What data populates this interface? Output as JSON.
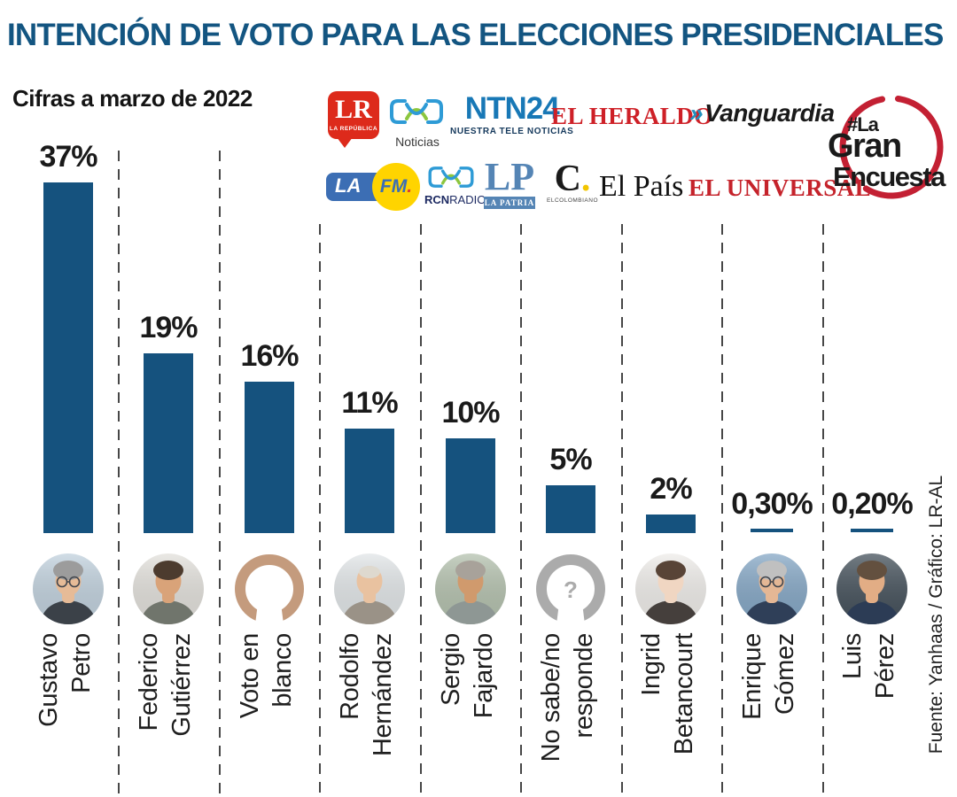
{
  "title": "INTENCIÓN DE VOTO PARA LAS ELECCIONES PRESIDENCIALES",
  "subtitle": "Cifras a marzo de 2022",
  "source": "Fuente: Yanhaas / Gráfico: LR-AL",
  "colors": {
    "title_blue": "#135581",
    "bar_blue": "#15527e",
    "dash_gray": "#474747",
    "badge_red": "#c32033",
    "placeholder_tan": "#c49b7d",
    "placeholder_gray": "#ababab"
  },
  "logos": {
    "lr": {
      "main": "LR",
      "sub": "LA REPÚBLICA"
    },
    "rcn_noticias": {
      "caption": "Noticias"
    },
    "ntn24": {
      "main": "NTN24",
      "sub": "NUESTRA TELE NOTICIAS"
    },
    "el_heraldo": {
      "text": "EL HERALDO"
    },
    "vanguardia": {
      "chevrons": "»",
      "text": "Vanguardia"
    },
    "la_fm": {
      "la": "LA",
      "fm": "FM",
      "dot": "."
    },
    "rcn_radio": {
      "rcn": "RCN",
      "radio": "RADIO"
    },
    "la_patria": {
      "main": "LP",
      "banner": "LA PATRIA"
    },
    "el_colombiano": {
      "main": "C",
      "dot": ".",
      "sub": "ELCOLOMBIANO"
    },
    "el_pais": {
      "text": "El País"
    },
    "el_universal": {
      "text": "EL UNIVERSAL"
    },
    "gran_encuesta": {
      "line1": "#La",
      "line2": "Gran",
      "line3": "Encuesta"
    }
  },
  "chart_data": {
    "type": "bar",
    "title": "Intención de voto para las elecciones presidenciales",
    "unit": "%",
    "ylim": [
      0,
      40
    ],
    "grid": false,
    "legend": "none",
    "categories": [
      "Gustavo Petro",
      "Federico Gutiérrez",
      "Voto en blanco",
      "Rodolfo Hernández",
      "Sergio Fajardo",
      "No sabe/no responde",
      "Ingrid Betancourt",
      "Enrique Gómez",
      "Luis Pérez"
    ],
    "values": [
      37,
      19,
      16,
      11,
      10,
      5,
      2,
      0.3,
      0.2
    ],
    "candidates": [
      {
        "name": [
          "Gustavo",
          "Petro"
        ],
        "value": 37,
        "label": "37%",
        "bar": "normal",
        "avatar": {
          "type": "photo",
          "bg": "#c2d2de",
          "hair": "#9c9c9c",
          "skin": "#e6bb97",
          "suit": "#3b4148",
          "glasses": true,
          "bald": false
        }
      },
      {
        "name": [
          "Federico",
          "Gutiérrez"
        ],
        "value": 19,
        "label": "19%",
        "bar": "normal",
        "avatar": {
          "type": "photo",
          "bg": "#e3e1dc",
          "hair": "#4c3b2e",
          "skin": "#d9a379",
          "suit": "#70756c",
          "glasses": false,
          "bald": false
        }
      },
      {
        "name": [
          "Voto en",
          "blanco"
        ],
        "value": 16,
        "label": "16%",
        "bar": "normal",
        "avatar": {
          "type": "placeholder",
          "color": "#c49b7d",
          "question": false
        }
      },
      {
        "name": [
          "Rodolfo",
          "Hernández"
        ],
        "value": 11,
        "label": "11%",
        "bar": "normal",
        "avatar": {
          "type": "photo",
          "bg": "#e2e6e8",
          "hair": "#ded9cf",
          "skin": "#e9c2a0",
          "suit": "#9a9287",
          "glasses": false,
          "bald": true
        }
      },
      {
        "name": [
          "Sergio",
          "Fajardo"
        ],
        "value": 10,
        "label": "10%",
        "bar": "normal",
        "avatar": {
          "type": "photo",
          "bg": "#b5c2af",
          "hair": "#a8a29a",
          "skin": "#d09a6d",
          "suit": "#8e9794",
          "glasses": false,
          "bald": false
        }
      },
      {
        "name": [
          "No sabe/no",
          "responde"
        ],
        "value": 5,
        "label": "5%",
        "bar": "normal",
        "avatar": {
          "type": "placeholder",
          "color": "#ababab",
          "question": true
        }
      },
      {
        "name": [
          "Ingrid",
          "Betancourt"
        ],
        "value": 2,
        "label": "2%",
        "bar": "normal",
        "avatar": {
          "type": "photo",
          "bg": "#efedea",
          "hair": "#584437",
          "skin": "#f0d6c2",
          "suit": "#453f3c",
          "glasses": false,
          "bald": false
        }
      },
      {
        "name": [
          "Enrique",
          "Gómez"
        ],
        "value": 0.3,
        "label": "0,30%",
        "bar": "thin",
        "avatar": {
          "type": "photo",
          "bg": "#86a8c6",
          "hair": "#c0c0c0",
          "skin": "#e4b795",
          "suit": "#2f3f58",
          "glasses": true,
          "bald": false
        }
      },
      {
        "name": [
          "Luis",
          "Pérez"
        ],
        "value": 0.2,
        "label": "0,20%",
        "bar": "thin",
        "avatar": {
          "type": "photo",
          "bg": "#46525c",
          "hair": "#63503f",
          "skin": "#e2ad85",
          "suit": "#2c3c55",
          "glasses": false,
          "bald": false
        }
      }
    ]
  }
}
